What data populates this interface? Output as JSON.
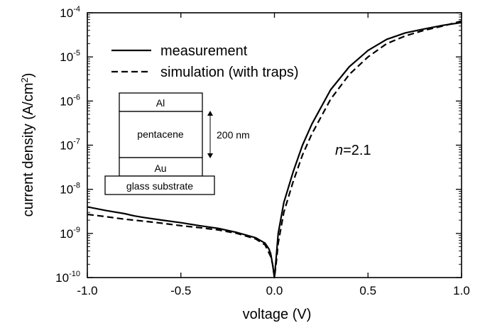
{
  "chart_data": {
    "type": "line",
    "title": "",
    "xlabel": "voltage (V)",
    "ylabel": "current density (A/cm²)",
    "ylabel_base": "current density (A/cm",
    "ylabel_sup": "2",
    "ylabel_close": ")",
    "xlim": [
      -1.0,
      1.0
    ],
    "ylim": [
      1e-10,
      0.0001
    ],
    "yscale": "log",
    "grid": false,
    "legend_position": "top-left",
    "x_ticks": [
      "-1.0",
      "-0.5",
      "0.0",
      "0.5",
      "1.0"
    ],
    "y_ticks": [
      {
        "base": "10",
        "exp": "-4"
      },
      {
        "base": "10",
        "exp": "-5"
      },
      {
        "base": "10",
        "exp": "-6"
      },
      {
        "base": "10",
        "exp": "-7"
      },
      {
        "base": "10",
        "exp": "-8"
      },
      {
        "base": "10",
        "exp": "-9"
      },
      {
        "base": "10",
        "exp": "-10"
      }
    ],
    "series": [
      {
        "name": "measurement",
        "style": "solid",
        "x": [
          -1.0,
          -0.9,
          -0.8,
          -0.75,
          -0.7,
          -0.6,
          -0.5,
          -0.4,
          -0.3,
          -0.2,
          -0.1,
          -0.05,
          -0.03,
          -0.02,
          -0.01,
          0.0,
          0.01,
          0.02,
          0.05,
          0.1,
          0.15,
          0.2,
          0.3,
          0.4,
          0.5,
          0.6,
          0.7,
          0.8,
          0.9,
          1.0
        ],
        "y": [
          4e-09,
          3.3e-09,
          2.8e-09,
          2.5e-09,
          2.3e-09,
          2e-09,
          1.75e-09,
          1.5e-09,
          1.3e-09,
          1.05e-09,
          8e-10,
          6e-10,
          4.5e-10,
          3.5e-10,
          2e-10,
          1e-10,
          3e-10,
          1e-09,
          5e-09,
          2.5e-08,
          1e-07,
          3e-07,
          1.8e-06,
          6e-06,
          1.4e-05,
          2.5e-05,
          3.5e-05,
          4.3e-05,
          5.2e-05,
          6e-05
        ]
      },
      {
        "name": "simulation (with traps)",
        "style": "dashed",
        "x": [
          -1.0,
          -0.9,
          -0.8,
          -0.7,
          -0.6,
          -0.5,
          -0.4,
          -0.3,
          -0.2,
          -0.1,
          -0.05,
          -0.02,
          -0.01,
          0.0,
          0.01,
          0.02,
          0.05,
          0.1,
          0.15,
          0.2,
          0.3,
          0.4,
          0.5,
          0.6,
          0.7,
          0.8,
          0.9,
          1.0
        ],
        "y": [
          2.7e-09,
          2.4e-09,
          2.1e-09,
          1.9e-09,
          1.7e-09,
          1.5e-09,
          1.35e-09,
          1.2e-09,
          1e-09,
          7.5e-10,
          5.5e-10,
          3e-10,
          2e-10,
          1e-10,
          2.2e-10,
          6e-10,
          3e-09,
          1.5e-08,
          6e-08,
          1.8e-07,
          1.1e-06,
          4e-06,
          1e-05,
          2e-05,
          3e-05,
          4e-05,
          5e-05,
          6.5e-05
        ]
      }
    ],
    "annotations": {
      "ideality_italic": "n",
      "ideality_value": "=2.1"
    },
    "inset": {
      "layers": [
        "Al",
        "pentacene",
        "Au",
        "glass substrate"
      ],
      "thickness_label": "200 nm"
    }
  }
}
